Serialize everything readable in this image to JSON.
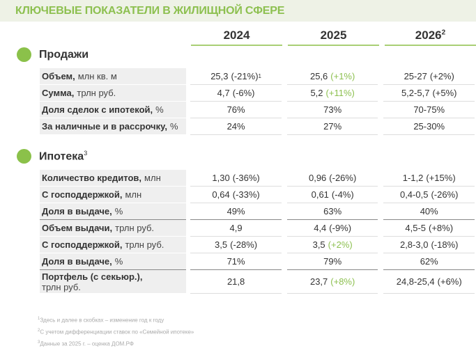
{
  "title": "КЛЮЧЕВЫЕ ПОКАЗАТЕЛИ В ЖИЛИЩНОЙ СФЕРЕ",
  "years": [
    {
      "y": "2024",
      "sup": ""
    },
    {
      "y": "2025",
      "sup": ""
    },
    {
      "y": "2026",
      "sup": "2"
    }
  ],
  "sections": [
    {
      "title": "Продажи",
      "sup": "",
      "rows": [
        {
          "bold": "Объем,",
          "unit": "млн кв. м",
          "cells": [
            {
              "v": "25,3",
              "c": "(-21%)",
              "g": false,
              "sup": "1"
            },
            {
              "v": "25,6",
              "c": "(+1%)",
              "g": true
            },
            {
              "v": "25-27",
              "c": "(+2%)",
              "g": false
            }
          ]
        },
        {
          "bold": "Сумма,",
          "unit": "трлн руб.",
          "cells": [
            {
              "v": "4,7",
              "c": "(-6%)",
              "g": false
            },
            {
              "v": "5,2",
              "c": "(+11%)",
              "g": true
            },
            {
              "v": "5,2-5,7",
              "c": "(+5%)",
              "g": false
            }
          ]
        },
        {
          "bold": "Доля сделок с ипотекой,",
          "unit": "%",
          "cells": [
            {
              "v": "76%"
            },
            {
              "v": "73%"
            },
            {
              "v": "70-75%"
            }
          ]
        },
        {
          "bold": "За наличные и в рассрочку,",
          "unit": "%",
          "cells": [
            {
              "v": "24%"
            },
            {
              "v": "27%"
            },
            {
              "v": "25-30%"
            }
          ]
        }
      ]
    },
    {
      "title": "Ипотека",
      "sup": "3",
      "rows": [
        {
          "bold": "Количество кредитов,",
          "unit": "млн",
          "cells": [
            {
              "v": "1,30",
              "c": "(-36%)"
            },
            {
              "v": "0,96",
              "c": "(-26%)"
            },
            {
              "v": "1-1,2",
              "c": "(+15%)"
            }
          ]
        },
        {
          "bold": "С господдержкой,",
          "unit": "млн",
          "cells": [
            {
              "v": "0,64",
              "c": "(-33%)"
            },
            {
              "v": "0,61",
              "c": "(-4%)"
            },
            {
              "v": "0,4-0,5",
              "c": "(-26%)"
            }
          ]
        },
        {
          "bold": "Доля в выдаче,",
          "unit": "%",
          "thick": true,
          "cells": [
            {
              "v": "49%"
            },
            {
              "v": "63%"
            },
            {
              "v": "40%"
            }
          ]
        },
        {
          "bold": "Объем выдачи,",
          "unit": "трлн руб.",
          "cells": [
            {
              "v": "4,9"
            },
            {
              "v": "4,4",
              "c": "(-9%)"
            },
            {
              "v": "4,5-5",
              "c": "(+8%)"
            }
          ]
        },
        {
          "bold": "С господдержкой,",
          "unit": "трлн руб.",
          "cells": [
            {
              "v": "3,5",
              "c": "(-28%)"
            },
            {
              "v": "3,5",
              "c": "(+2%)",
              "g": true
            },
            {
              "v": "2,8-3,0",
              "c": "(-18%)"
            }
          ]
        },
        {
          "bold": "Доля в выдаче,",
          "unit": "%",
          "thick": true,
          "cells": [
            {
              "v": "71%"
            },
            {
              "v": "79%"
            },
            {
              "v": "62%"
            }
          ]
        },
        {
          "bold": "Портфель (с секьюр.),",
          "unit": "трлн руб.",
          "tall": true,
          "cells": [
            {
              "v": "21,8"
            },
            {
              "v": "23,7",
              "c": "(+8%)",
              "g": true
            },
            {
              "v": "24,8-25,4",
              "c": "(+6%)"
            }
          ]
        }
      ]
    }
  ],
  "footnotes": [
    {
      "n": "1",
      "t": "Здесь и далее в скобках – изменение год к году"
    },
    {
      "n": "2",
      "t": "С учетом дифференциации ставок по «Семейной ипотеке»"
    },
    {
      "n": "3",
      "t": "Данные за 2025 г. – оценка ДОМ.РФ"
    }
  ],
  "colors": {
    "accent": "#8dc050",
    "band": "#eef2e6"
  }
}
